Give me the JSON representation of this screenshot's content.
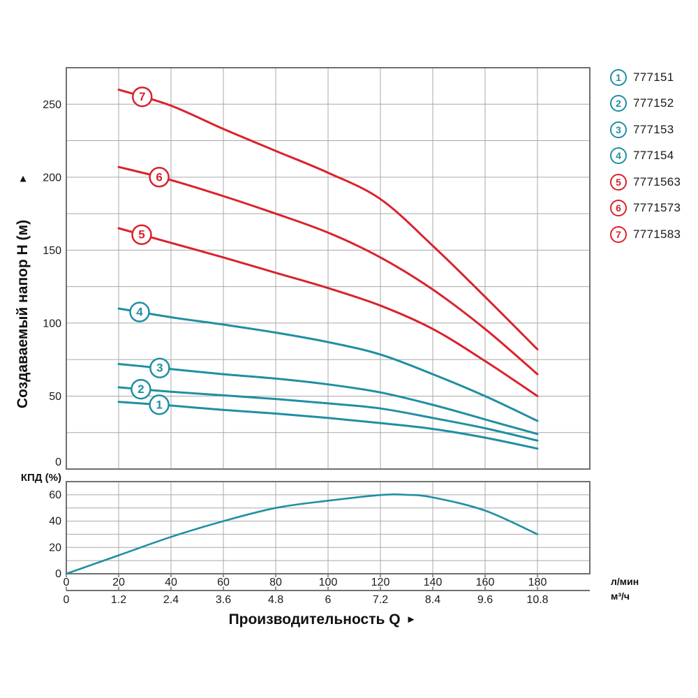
{
  "colors": {
    "teal": "#1f8fa2",
    "red": "#da222b",
    "grid": "#a8a8a8",
    "border": "#6f6f6f",
    "text": "#1b1b1b"
  },
  "labels": {
    "y_axis_title": "Создаваемый напор H (м)",
    "y_axis_arrow": "▲",
    "x_axis_title": "Производительность Q",
    "x_axis_arrow": "►",
    "eff_label": "КПД (%)",
    "unit_lmin": "л/мин",
    "unit_m3h": "м³/ч"
  },
  "legend": {
    "items": [
      {
        "number": "1",
        "part": "777151",
        "color_key": "teal"
      },
      {
        "number": "2",
        "part": "777152",
        "color_key": "teal"
      },
      {
        "number": "3",
        "part": "777153",
        "color_key": "teal"
      },
      {
        "number": "4",
        "part": "777154",
        "color_key": "teal"
      },
      {
        "number": "5",
        "part": "7771563",
        "color_key": "red"
      },
      {
        "number": "6",
        "part": "7771573",
        "color_key": "red"
      },
      {
        "number": "7",
        "part": "7771583",
        "color_key": "red"
      }
    ]
  },
  "chart_data": [
    {
      "type": "line",
      "role": "head-vs-flow",
      "title": "",
      "ylabel": "Создаваемый напор H (м)",
      "xlabel": "Производительность Q",
      "x_units": [
        "л/мин",
        "м³/ч"
      ],
      "xlim_lmin": [
        0,
        200
      ],
      "ylim": [
        0,
        275
      ],
      "grid_step_x_lmin": 20,
      "grid_step_y": 25,
      "x_ticks_lmin": [
        0,
        20,
        40,
        60,
        80,
        100,
        120,
        140,
        160,
        180
      ],
      "x_ticks_m3h": [
        "0",
        "1.2",
        "2.4",
        "3.6",
        "4.8",
        "6",
        "7.2",
        "8.4",
        "9.6",
        "10.8"
      ],
      "y_ticks": [
        0,
        50,
        100,
        150,
        200,
        250
      ],
      "grid": true,
      "legend_position": "right",
      "series": [
        {
          "label": "1",
          "name": "777151",
          "color_key": "teal",
          "badge_q": 35.5,
          "x": [
            20,
            40,
            60,
            80,
            100,
            120,
            140,
            160,
            180
          ],
          "y": [
            46,
            43.5,
            40.5,
            38,
            35,
            31.5,
            27.5,
            21.5,
            14
          ]
        },
        {
          "label": "2",
          "name": "777152",
          "color_key": "teal",
          "badge_q": 28.5,
          "x": [
            20,
            40,
            60,
            80,
            100,
            120,
            140,
            160,
            180
          ],
          "y": [
            56,
            53,
            50.5,
            48,
            45,
            41.5,
            35,
            28,
            19.5
          ]
        },
        {
          "label": "3",
          "name": "777153",
          "color_key": "teal",
          "badge_q": 35.7,
          "x": [
            20,
            40,
            60,
            80,
            100,
            120,
            140,
            160,
            180
          ],
          "y": [
            72,
            68.5,
            65,
            62,
            58,
            52.5,
            44,
            34,
            24
          ]
        },
        {
          "label": "4",
          "name": "777154",
          "color_key": "teal",
          "badge_q": 28,
          "x": [
            20,
            40,
            60,
            80,
            100,
            120,
            140,
            160,
            180
          ],
          "y": [
            110,
            104,
            99,
            93.5,
            87,
            78.5,
            65,
            50,
            33
          ]
        },
        {
          "label": "5",
          "name": "7771563",
          "color_key": "red",
          "badge_q": 28.8,
          "x": [
            20,
            40,
            60,
            80,
            100,
            120,
            140,
            160,
            180
          ],
          "y": [
            165,
            155,
            145,
            134.5,
            124,
            112,
            96,
            74,
            50
          ]
        },
        {
          "label": "6",
          "name": "7771573",
          "color_key": "red",
          "badge_q": 35.5,
          "x": [
            20,
            40,
            60,
            80,
            100,
            120,
            140,
            160,
            180
          ],
          "y": [
            207,
            198,
            187,
            175,
            162,
            145,
            123,
            96,
            65
          ]
        },
        {
          "label": "7",
          "name": "7771583",
          "color_key": "red",
          "badge_q": 29,
          "x": [
            20,
            40,
            60,
            80,
            100,
            120,
            140,
            160,
            180
          ],
          "y": [
            260,
            249,
            233,
            218,
            203,
            185,
            153,
            118,
            82
          ]
        }
      ]
    },
    {
      "type": "line",
      "role": "efficiency",
      "ylabel": "КПД (%)",
      "xlim_lmin": [
        0,
        200
      ],
      "ylim": [
        0,
        70
      ],
      "grid_step_y": 10,
      "y_ticks": [
        0,
        20,
        40,
        60
      ],
      "grid": true,
      "series": [
        {
          "name": "КПД",
          "color_key": "teal",
          "x": [
            0,
            20,
            40,
            60,
            80,
            100,
            120,
            130,
            140,
            160,
            180
          ],
          "y": [
            0,
            14,
            28,
            40,
            50,
            55.5,
            59.8,
            60,
            58,
            48,
            30
          ]
        }
      ]
    }
  ]
}
